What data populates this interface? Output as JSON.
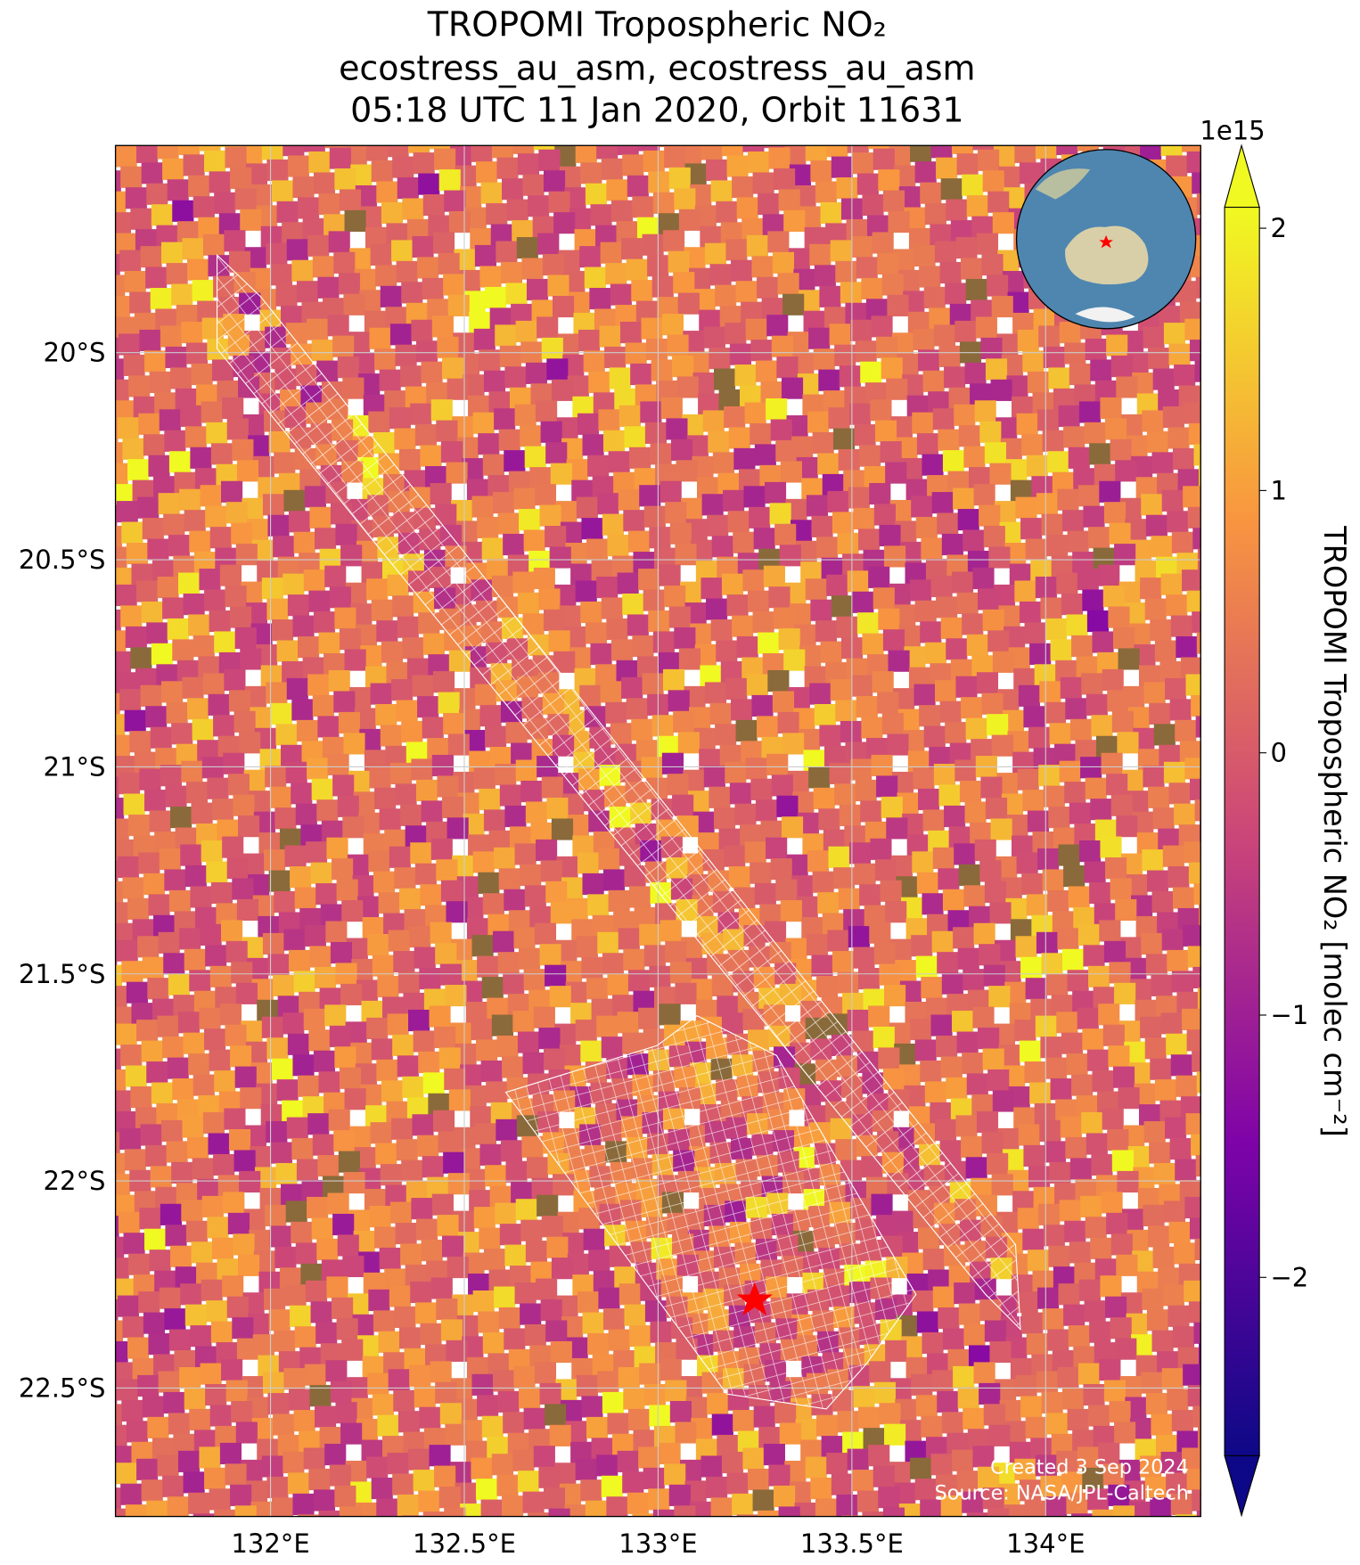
{
  "chart_data": {
    "type": "map",
    "title": [
      "TROPOMI Tropospheric NO₂",
      "ecostress_au_asm, ecostress_au_asm",
      "05:18 UTC 11 Jan 2020, Orbit 11631"
    ],
    "xlim": [
      131.6,
      134.4
    ],
    "ylim": [
      -22.81,
      -19.5
    ],
    "xticks": [
      {
        "value": 132,
        "label": "132°E"
      },
      {
        "value": 132.5,
        "label": "132.5°E"
      },
      {
        "value": 133,
        "label": "133°E"
      },
      {
        "value": 133.5,
        "label": "133.5°E"
      },
      {
        "value": 134,
        "label": "134°E"
      }
    ],
    "yticks": [
      {
        "value": -20,
        "label": "20°S"
      },
      {
        "value": -20.5,
        "label": "20.5°S"
      },
      {
        "value": -21,
        "label": "21°S"
      },
      {
        "value": -21.5,
        "label": "21.5°S"
      },
      {
        "value": -22,
        "label": "22°S"
      },
      {
        "value": -22.5,
        "label": "22.5°S"
      }
    ],
    "grid": true,
    "colorbar": {
      "label": "TROPOMI Tropospheric NO₂ [molec cm⁻²]",
      "scale_label": "1e15",
      "lim": [
        -2.68,
        2.08
      ],
      "ticks": [
        {
          "value": -2,
          "label": "−2"
        },
        {
          "value": -1,
          "label": "−1"
        },
        0,
        1,
        2
      ]
    },
    "annotations": [
      "Created 3 Sep 2024",
      "Source: NASA/JPL-Caltech"
    ]
  }
}
